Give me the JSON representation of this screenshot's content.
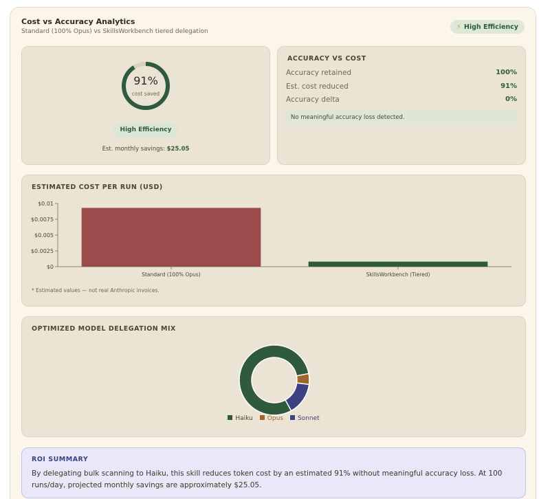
{
  "header": {
    "title": "Cost vs Accuracy Analytics",
    "subtitle": "Standard (100% Opus) vs SkillsWorkbench tiered delegation",
    "badge": "High Efficiency",
    "badge_icon": "lightning-bolt-icon"
  },
  "gauge": {
    "percent_text": "91%",
    "value": 0.91,
    "label": "cost saved",
    "pill": "High Efficiency",
    "savings_label": "Est. monthly savings:",
    "savings_value": "$25.05"
  },
  "accuracy": {
    "title": "ACCURACY VS COST",
    "rows": [
      {
        "label": "Accuracy retained",
        "value": "100%"
      },
      {
        "label": "Est. cost reduced",
        "value": "91%"
      },
      {
        "label": "Accuracy delta",
        "value": "0%"
      }
    ],
    "note": "No meaningful accuracy loss detected."
  },
  "chart_data": [
    {
      "type": "bar",
      "title": "ESTIMATED COST PER RUN (USD)",
      "categories": [
        "Standard (100% Opus)",
        "SkillsWorkbench (Tiered)"
      ],
      "values": [
        0.0093,
        0.0008
      ],
      "colors": [
        "#9b4b4b",
        "#2f5a3c"
      ],
      "ylim": [
        0,
        0.01
      ],
      "yticks": [
        "$0",
        "$0.0025",
        "$0.005",
        "$0.0075",
        "$0.01"
      ],
      "ytick_values": [
        0,
        0.0025,
        0.005,
        0.0075,
        0.01
      ],
      "footnote": "* Estimated values — not real Anthropic invoices."
    },
    {
      "type": "pie",
      "title": "OPTIMIZED MODEL DELEGATION MIX",
      "donut": true,
      "labels": [
        "Haiku",
        "Opus",
        "Sonnet"
      ],
      "values": [
        80,
        5,
        15
      ],
      "colors": [
        "#2f5a3c",
        "#a0672a",
        "#3d4283"
      ]
    }
  ],
  "roi": {
    "title": "ROI SUMMARY",
    "body": "By delegating bulk scanning to Haiku, this skill reduces token cost by an estimated 91% without meaningful accuracy loss. At 100 runs/day, projected monthly savings are approximately $25.05."
  },
  "colors": {
    "accent_green": "#2f5a3c",
    "bar_red": "#9b4b4b",
    "roi_blue": "#3d4283"
  }
}
